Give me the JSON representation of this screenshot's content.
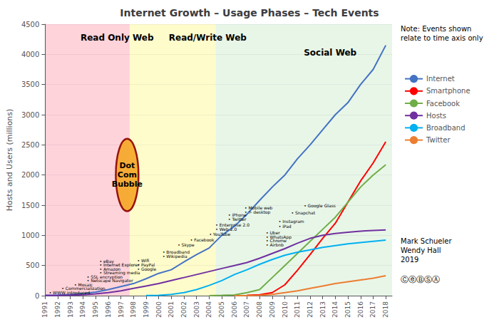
{
  "chart_data": {
    "type": "line",
    "title": "Internet Growth – Usage Phases – Tech Events",
    "ylabel": "Hosts and Users (millions)",
    "xlim": [
      1991,
      2018.5
    ],
    "ylim": [
      0,
      4500
    ],
    "xticks": [
      1991,
      1992,
      1993,
      1994,
      1995,
      1996,
      1997,
      1998,
      1999,
      2000,
      2001,
      2002,
      2003,
      2004,
      2005,
      2006,
      2007,
      2008,
      2009,
      2010,
      2011,
      2012,
      2013,
      2014,
      2015,
      2016,
      2017,
      2018
    ],
    "yticks": [
      0,
      500,
      1000,
      1500,
      2000,
      2500,
      3000,
      3500,
      4000,
      4500
    ],
    "grid": "y",
    "legend": "right",
    "series": [
      {
        "name": "Internet",
        "color": "#4472C4",
        "x": [
          1991,
          1992,
          1993,
          1994,
          1995,
          1996,
          1997,
          1998,
          1999,
          2000,
          2001,
          2002,
          2003,
          2004,
          2005,
          2006,
          2007,
          2008,
          2009,
          2010,
          2011,
          2012,
          2013,
          2014,
          2015,
          2016,
          2017,
          2018
        ],
        "values": [
          5,
          10,
          20,
          35,
          60,
          100,
          150,
          200,
          280,
          370,
          430,
          560,
          680,
          790,
          1000,
          1150,
          1350,
          1580,
          1800,
          2000,
          2270,
          2500,
          2750,
          3000,
          3200,
          3500,
          3750,
          4150
        ]
      },
      {
        "name": "Smartphone",
        "color": "#FF0000",
        "x": [
          2007,
          2008,
          2009,
          2010,
          2011,
          2012,
          2013,
          2014,
          2015,
          2016,
          2017,
          2018
        ],
        "values": [
          5,
          15,
          50,
          180,
          420,
          680,
          950,
          1200,
          1550,
          1900,
          2200,
          2550
        ]
      },
      {
        "name": "Facebook",
        "color": "#70AD47",
        "x": [
          2004,
          2005,
          2006,
          2007,
          2008,
          2009,
          2010,
          2011,
          2012,
          2013,
          2014,
          2015,
          2016,
          2017,
          2018
        ],
        "values": [
          1,
          5,
          12,
          50,
          100,
          300,
          500,
          700,
          900,
          1100,
          1300,
          1550,
          1800,
          2000,
          2170
        ]
      },
      {
        "name": "Hosts",
        "color": "#7030A0",
        "x": [
          1991,
          1992,
          1993,
          1994,
          1995,
          1996,
          1997,
          1998,
          1999,
          2000,
          2001,
          2002,
          2003,
          2004,
          2005,
          2006,
          2007,
          2008,
          2009,
          2010,
          2011,
          2012,
          2013,
          2014,
          2015,
          2016,
          2017,
          2018
        ],
        "values": [
          2,
          4,
          8,
          15,
          30,
          50,
          80,
          120,
          160,
          200,
          250,
          300,
          350,
          400,
          450,
          500,
          550,
          620,
          700,
          780,
          870,
          950,
          1000,
          1030,
          1050,
          1070,
          1080,
          1090
        ]
      },
      {
        "name": "Broadband",
        "color": "#00B0F0",
        "x": [
          1999,
          2000,
          2001,
          2002,
          2003,
          2004,
          2005,
          2006,
          2007,
          2008,
          2009,
          2010,
          2011,
          2012,
          2013,
          2014,
          2015,
          2016,
          2017,
          2018
        ],
        "values": [
          2,
          5,
          20,
          50,
          100,
          170,
          250,
          350,
          430,
          520,
          600,
          670,
          720,
          760,
          800,
          830,
          860,
          880,
          900,
          920
        ]
      },
      {
        "name": "Twitter",
        "color": "#ED7D31",
        "x": [
          2006,
          2007,
          2008,
          2009,
          2010,
          2011,
          2012,
          2013,
          2014,
          2015,
          2016,
          2017,
          2018
        ],
        "values": [
          1,
          2,
          5,
          20,
          50,
          80,
          120,
          160,
          200,
          230,
          260,
          290,
          330
        ]
      }
    ],
    "phases": [
      {
        "label": "Read Only Web",
        "xstart": 1991,
        "xend": 1997.7,
        "color": "#FFB6C1",
        "x": 1993.8,
        "y": 4350
      },
      {
        "label": "Read/Write Web",
        "xstart": 1997.7,
        "xend": 2004.5,
        "color": "#FFFAAA",
        "x": 2000.8,
        "y": 4350
      },
      {
        "label": "Social Web",
        "xstart": 2004.5,
        "xend": 2018.5,
        "color": "#D8F0D8",
        "x": 2011.5,
        "y": 4100
      }
    ],
    "bubble": {
      "text": "Dot\nCom\nBubble",
      "x": 1997.5,
      "y": 2000,
      "width": 1.8,
      "height": 1200,
      "color": "#F5A623",
      "edge_color": "#8B0000"
    },
    "annotations": [
      {
        "text": "• WWW introduced",
        "x": 1991.3,
        "y": 55
      },
      {
        "text": "• Commercialization",
        "x": 1992.3,
        "y": 120
      },
      {
        "text": "• Mosaic",
        "x": 1993.3,
        "y": 185
      },
      {
        "text": "• Netscape Navigator",
        "x": 1994.3,
        "y": 250
      },
      {
        "text": "• SSL encryption",
        "x": 1994.3,
        "y": 315
      },
      {
        "text": "• Streaming media",
        "x": 1995.3,
        "y": 380
      },
      {
        "text": "• Amazon",
        "x": 1995.3,
        "y": 445
      },
      {
        "text": "• Internet Explorer",
        "x": 1995.3,
        "y": 510
      },
      {
        "text": "• eBay",
        "x": 1995.3,
        "y": 575
      },
      {
        "text": "• Google",
        "x": 1998.3,
        "y": 440
      },
      {
        "text": "• PayPal",
        "x": 1998.3,
        "y": 510
      },
      {
        "text": "• Wifi",
        "x": 1998.3,
        "y": 580
      },
      {
        "text": "• Wikipedia",
        "x": 2000.3,
        "y": 660
      },
      {
        "text": "• Broadband",
        "x": 2000.3,
        "y": 730
      },
      {
        "text": "• Skype",
        "x": 2001.5,
        "y": 840
      },
      {
        "text": "• Facebook",
        "x": 2002.5,
        "y": 930
      },
      {
        "text": "• YouTube",
        "x": 2004.0,
        "y": 1020
      },
      {
        "text": "• Web 2.0",
        "x": 2004.5,
        "y": 1110
      },
      {
        "text": "• Enterprise 2.0",
        "x": 2004.5,
        "y": 1180
      },
      {
        "text": "• Twitter",
        "x": 2005.5,
        "y": 1270
      },
      {
        "text": "• iPhone",
        "x": 2005.5,
        "y": 1340
      },
      {
        "text": "• > desktop",
        "x": 2006.8,
        "y": 1390
      },
      {
        "text": "• Mobile web",
        "x": 2006.8,
        "y": 1460
      },
      {
        "text": "• Airbnb",
        "x": 2008.5,
        "y": 840
      },
      {
        "text": "• Chrome",
        "x": 2008.5,
        "y": 910
      },
      {
        "text": "• WhatsApp",
        "x": 2008.5,
        "y": 980
      },
      {
        "text": "• Uber",
        "x": 2008.5,
        "y": 1050
      },
      {
        "text": "• iPad",
        "x": 2009.5,
        "y": 1150
      },
      {
        "text": "• Instagram",
        "x": 2009.5,
        "y": 1240
      },
      {
        "text": "• Snapchat",
        "x": 2010.5,
        "y": 1380
      },
      {
        "text": "• Google Glass",
        "x": 2011.5,
        "y": 1500
      }
    ],
    "notes": [
      "Note: Events shown\nrelate to time axis only",
      "Mark Schueler\nWendy Hall\n2019",
      "ⒸⓔⒷⓈⒶ"
    ]
  }
}
